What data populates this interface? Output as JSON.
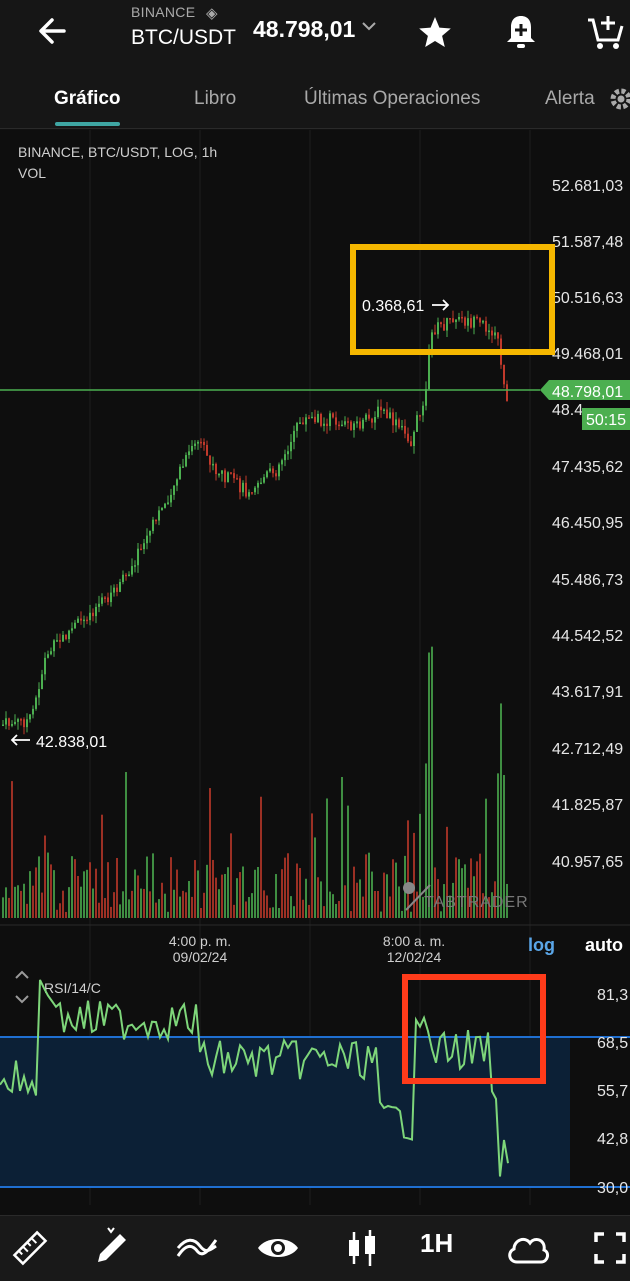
{
  "header": {
    "exchange": "BINANCE",
    "pair": "BTC/USDT",
    "price": "48.798,01"
  },
  "tabs": [
    {
      "label": "Gráfico",
      "active": true
    },
    {
      "label": "Libro",
      "active": false
    },
    {
      "label": "Últimas Operaciones",
      "active": false
    },
    {
      "label": "Alerta",
      "active": false
    }
  ],
  "chart": {
    "info_line1": "BINANCE, BTC/USDT, LOG, 1h",
    "info_line2": "VOL",
    "price_axis": [
      "52.681,03",
      "51.587,48",
      "50.516,63",
      "49.468,01",
      "48.4",
      "47.435,62",
      "46.450,95",
      "45.486,73",
      "44.542,52",
      "43.617,91",
      "42.712,49",
      "41.825,87",
      "40.957,65"
    ],
    "current_price": "48.798,01",
    "countdown": "50:15",
    "high_label": "0.368,61",
    "low_label": "42.838,01",
    "watermark": "TABTRADER",
    "time_labels": [
      {
        "time": "4:00 p. m.",
        "date": "09/02/24"
      },
      {
        "time": "8:00 a. m.",
        "date": "12/02/24"
      }
    ],
    "log_label": "log",
    "auto_label": "auto",
    "colors": {
      "up": "#4caf50",
      "down": "#c0392b",
      "highlight_yellow": "#f5b700",
      "highlight_red": "#ff3b1a",
      "rsi_line": "#7ed67a",
      "rsi_band": "#1f6fd1"
    }
  },
  "rsi": {
    "label": "RSI/14/C",
    "axis": [
      "81,3",
      "68,5",
      "55,7",
      "42,8",
      "30,0"
    ]
  },
  "bottom_timeframe": "1H",
  "icons": [
    "back-arrow-icon",
    "binance-logo-icon",
    "chevron-down-icon",
    "star-icon",
    "alert-add-icon",
    "cart-add-icon",
    "settings-icon",
    "ruler-icon",
    "pencil-icon",
    "indicators-icon",
    "eye-icon",
    "candles-icon",
    "cloud-icon",
    "fullscreen-icon"
  ]
}
